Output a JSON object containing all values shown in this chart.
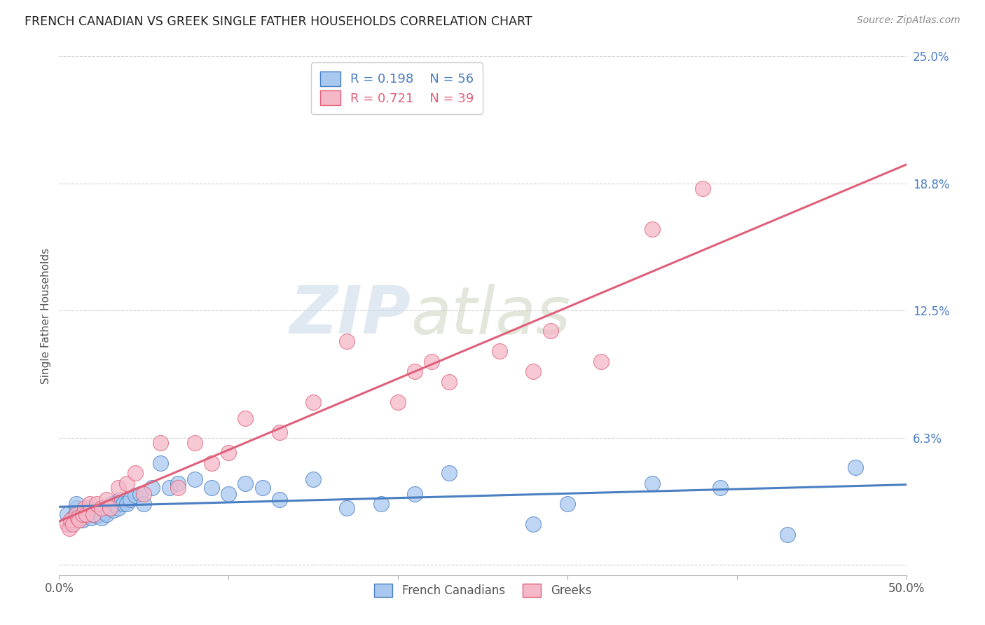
{
  "title": "FRENCH CANADIAN VS GREEK SINGLE FATHER HOUSEHOLDS CORRELATION CHART",
  "source": "Source: ZipAtlas.com",
  "ylabel": "Single Father Households",
  "xlim": [
    0.0,
    0.5
  ],
  "ylim": [
    -0.005,
    0.25
  ],
  "ytick_positions": [
    0.0,
    0.0625,
    0.125,
    0.1875,
    0.25
  ],
  "ytick_labels": [
    "",
    "6.3%",
    "12.5%",
    "18.8%",
    "25.0%"
  ],
  "xtick_positions": [
    0.0,
    0.1,
    0.2,
    0.3,
    0.4,
    0.5
  ],
  "xtick_labels": [
    "0.0%",
    "",
    "",
    "",
    "",
    "50.0%"
  ],
  "french_color": "#a8c8f0",
  "greek_color": "#f5b8c8",
  "french_line_color": "#4a7fc1",
  "greek_line_color": "#e0607a",
  "R_french": 0.198,
  "N_french": 56,
  "R_greek": 0.721,
  "N_greek": 39,
  "watermark_zip": "ZIP",
  "watermark_atlas": "atlas",
  "legend_label_french": "French Canadians",
  "legend_label_greek": "Greeks",
  "french_x": [
    0.005,
    0.007,
    0.008,
    0.009,
    0.01,
    0.01,
    0.012,
    0.013,
    0.014,
    0.015,
    0.016,
    0.017,
    0.018,
    0.019,
    0.02,
    0.021,
    0.022,
    0.023,
    0.024,
    0.025,
    0.026,
    0.027,
    0.028,
    0.03,
    0.031,
    0.032,
    0.033,
    0.035,
    0.036,
    0.038,
    0.04,
    0.042,
    0.045,
    0.048,
    0.05,
    0.055,
    0.06,
    0.065,
    0.07,
    0.08,
    0.09,
    0.1,
    0.11,
    0.12,
    0.13,
    0.15,
    0.17,
    0.19,
    0.21,
    0.23,
    0.28,
    0.3,
    0.35,
    0.39,
    0.43,
    0.47
  ],
  "french_y": [
    0.025,
    0.02,
    0.023,
    0.022,
    0.028,
    0.03,
    0.025,
    0.023,
    0.022,
    0.026,
    0.025,
    0.027,
    0.028,
    0.023,
    0.025,
    0.027,
    0.024,
    0.026,
    0.025,
    0.023,
    0.028,
    0.026,
    0.025,
    0.028,
    0.03,
    0.027,
    0.03,
    0.028,
    0.032,
    0.03,
    0.03,
    0.032,
    0.034,
    0.035,
    0.03,
    0.038,
    0.05,
    0.038,
    0.04,
    0.042,
    0.038,
    0.035,
    0.04,
    0.038,
    0.032,
    0.042,
    0.028,
    0.03,
    0.035,
    0.045,
    0.02,
    0.03,
    0.04,
    0.038,
    0.015,
    0.048
  ],
  "greek_x": [
    0.005,
    0.006,
    0.007,
    0.008,
    0.01,
    0.011,
    0.012,
    0.014,
    0.015,
    0.016,
    0.018,
    0.02,
    0.022,
    0.025,
    0.028,
    0.03,
    0.035,
    0.04,
    0.045,
    0.05,
    0.06,
    0.07,
    0.08,
    0.09,
    0.1,
    0.11,
    0.13,
    0.15,
    0.17,
    0.2,
    0.21,
    0.22,
    0.23,
    0.26,
    0.28,
    0.29,
    0.32,
    0.35,
    0.38
  ],
  "greek_y": [
    0.02,
    0.018,
    0.022,
    0.02,
    0.025,
    0.023,
    0.022,
    0.025,
    0.028,
    0.025,
    0.03,
    0.025,
    0.03,
    0.028,
    0.032,
    0.028,
    0.038,
    0.04,
    0.045,
    0.035,
    0.06,
    0.038,
    0.06,
    0.05,
    0.055,
    0.072,
    0.065,
    0.08,
    0.11,
    0.08,
    0.095,
    0.1,
    0.09,
    0.105,
    0.095,
    0.115,
    0.1,
    0.165,
    0.185
  ]
}
